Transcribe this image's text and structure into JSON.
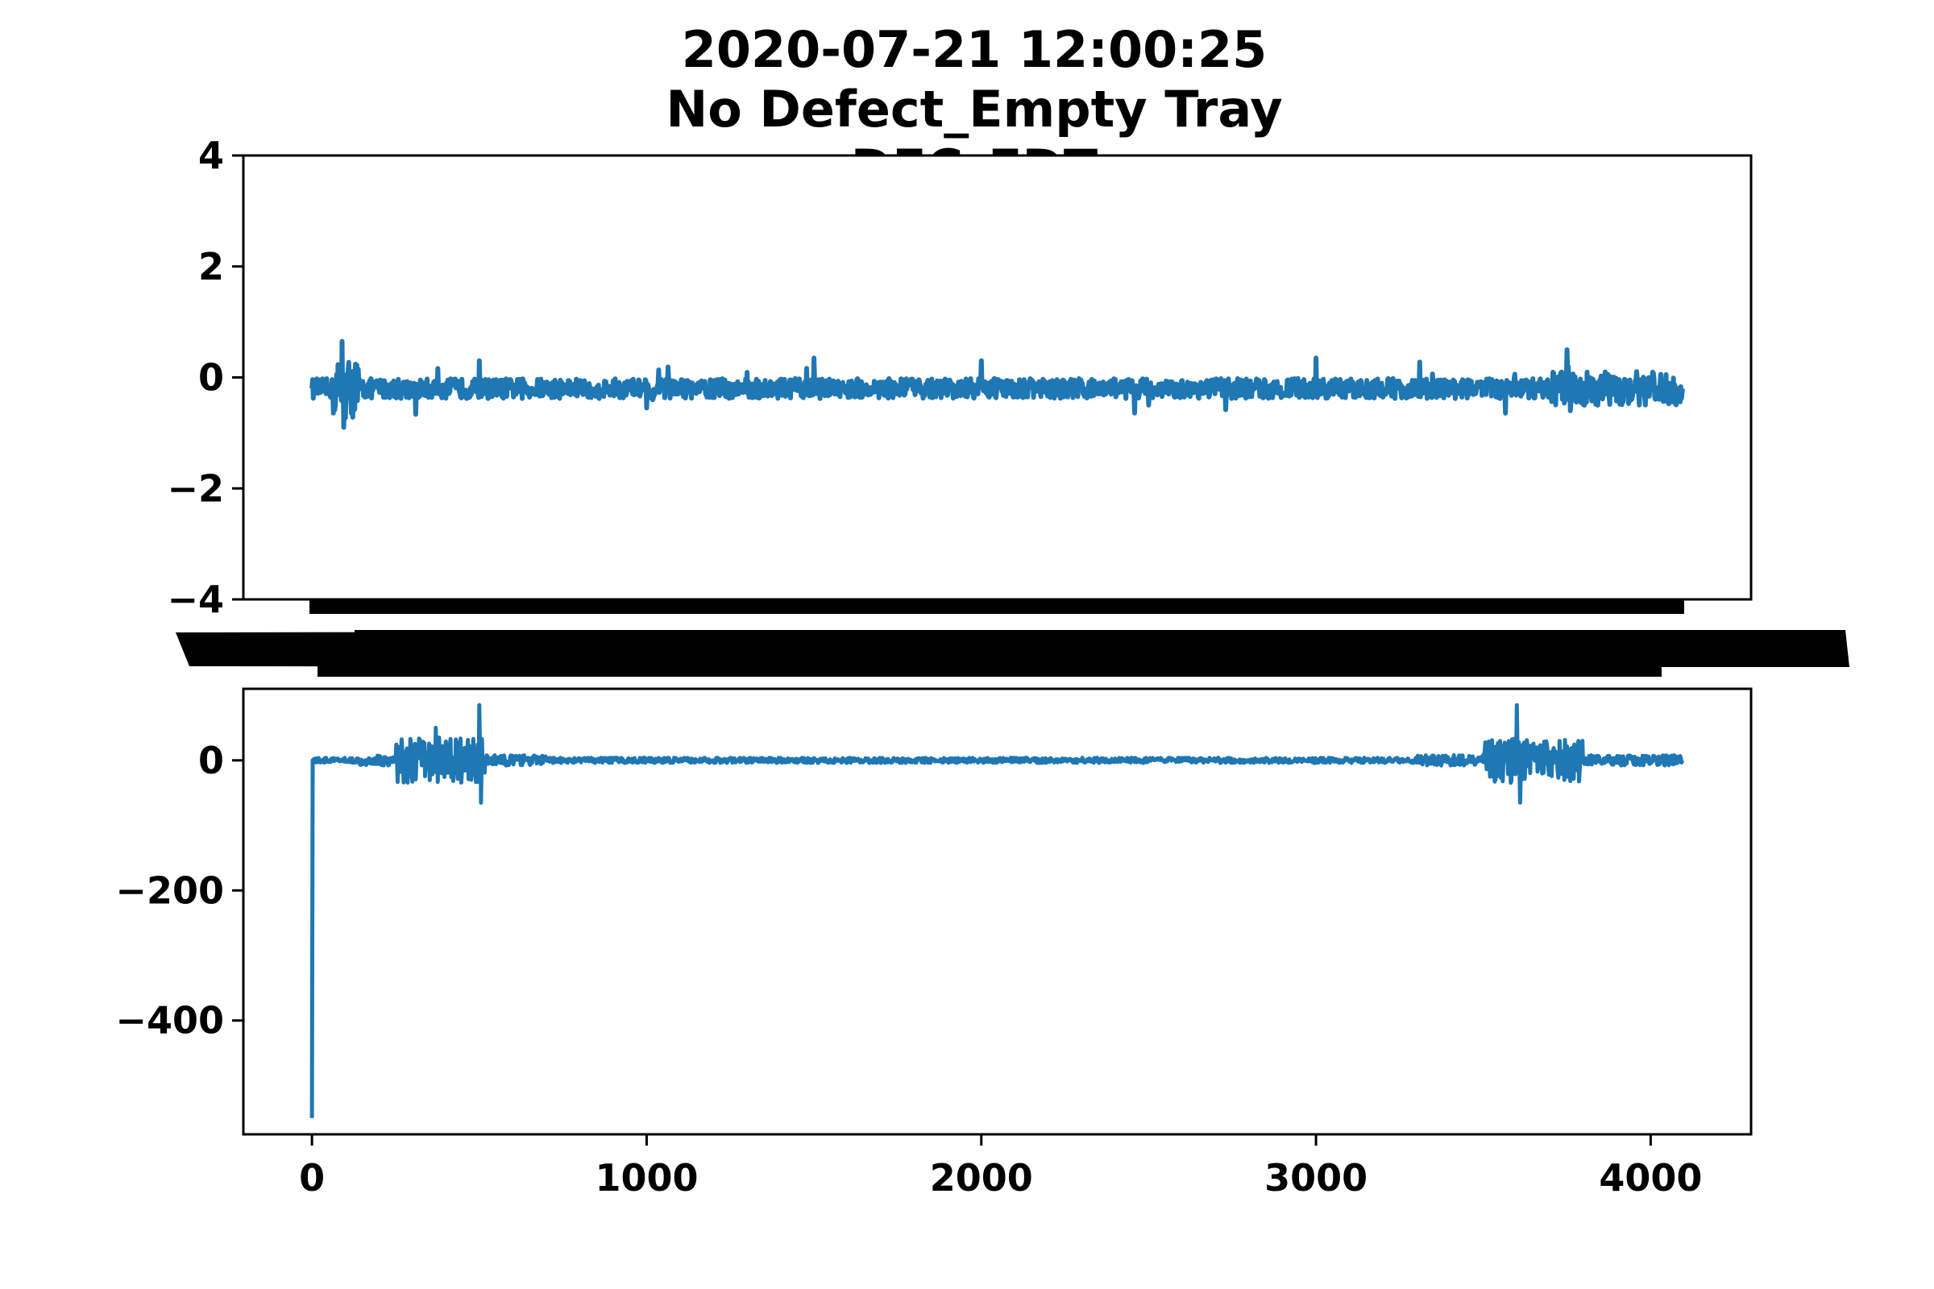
{
  "title_lines": [
    "2020-07-21 12:00:25",
    "No Defect_Empty Tray",
    "DEC_EDT"
  ],
  "colors": {
    "series": "#1f77b4",
    "axes": "#000000",
    "background": "#ffffff"
  },
  "chart_data": [
    {
      "type": "line",
      "title": "",
      "xlabel": "",
      "ylabel": "",
      "xlim": [
        -205,
        4300
      ],
      "ylim": [
        -4,
        4
      ],
      "yticks": [
        -4,
        -2,
        0,
        2,
        4
      ],
      "ytick_labels": [
        "−4",
        "−2",
        "0",
        "2",
        "4"
      ],
      "xticks": [],
      "grid": false,
      "series": [
        {
          "x_range": [
            0,
            4095
          ],
          "description": "noise signal",
          "baseline": -0.2,
          "sparse_points": [
            {
              "x": 0,
              "y": -0.2
            },
            {
              "x": 90,
              "y": 0.65
            },
            {
              "x": 95,
              "y": -0.9
            },
            {
              "x": 500,
              "y": 0.3
            },
            {
              "x": 1000,
              "y": -0.55
            },
            {
              "x": 1500,
              "y": 0.35
            },
            {
              "x": 2000,
              "y": 0.3
            },
            {
              "x": 2500,
              "y": -0.5
            },
            {
              "x": 3000,
              "y": 0.35
            },
            {
              "x": 3750,
              "y": 0.5
            },
            {
              "x": 3760,
              "y": -0.6
            },
            {
              "x": 4095,
              "y": -0.2
            }
          ]
        }
      ]
    },
    {
      "type": "line",
      "title": "",
      "xlabel": "",
      "ylabel": "",
      "xlim": [
        -205,
        4300
      ],
      "ylim": [
        -575,
        110
      ],
      "yticks": [
        -400,
        -200,
        0
      ],
      "ytick_labels": [
        "−400",
        "−200",
        "0"
      ],
      "xticks": [
        0,
        1000,
        2000,
        3000,
        4000
      ],
      "xtick_labels": [
        "0",
        "1000",
        "2000",
        "3000",
        "4000"
      ],
      "grid": false,
      "series": [
        {
          "x_range": [
            0,
            4095
          ],
          "description": "signal with initial spike and two bursts",
          "sparse_points": [
            {
              "x": 0,
              "y": -550
            },
            {
              "x": 2,
              "y": 0
            },
            {
              "x": 370,
              "y": 50
            },
            {
              "x": 500,
              "y": 85
            },
            {
              "x": 505,
              "y": -65
            },
            {
              "x": 2000,
              "y": 0
            },
            {
              "x": 3600,
              "y": 85
            },
            {
              "x": 3610,
              "y": -65
            },
            {
              "x": 4095,
              "y": 0
            }
          ]
        }
      ]
    }
  ]
}
